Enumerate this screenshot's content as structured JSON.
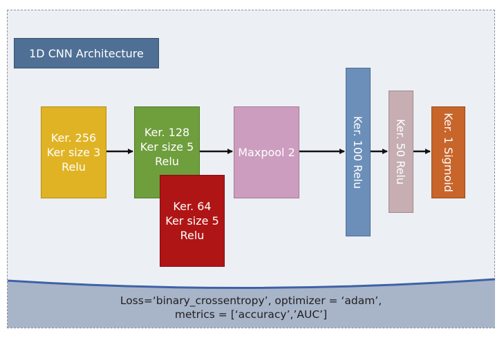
{
  "title": "1D CNN Architecture",
  "blocks": {
    "conv256": {
      "lines": [
        "Ker. 256",
        "Ker size 3",
        "Relu"
      ],
      "color": "#e0b325"
    },
    "conv128": {
      "lines": [
        "Ker. 128",
        "Ker size 5",
        "Relu"
      ],
      "color": "#6f9e3d"
    },
    "conv64": {
      "lines": [
        "Ker. 64",
        "Ker size 5",
        "Relu"
      ],
      "color": "#b01515"
    },
    "maxpool": {
      "label": "Maxpool 2",
      "color": "#cc9dbf"
    },
    "dense100": {
      "label": "Ker. 100 Relu",
      "color": "#6c8fba"
    },
    "dense50": {
      "label": "Ker. 50 Relu",
      "color": "#c6aeb3"
    },
    "output": {
      "label": "Ker. 1 Sigmoid",
      "color": "#c8652b"
    }
  },
  "footer": {
    "line1": "Loss=‘binary_crossentropy’, optimizer = ‘adam’,",
    "line2": "metrics = [‘accuracy’,’AUC’]",
    "color": "#a8b4c8",
    "wave_color": "#3d62a6"
  }
}
